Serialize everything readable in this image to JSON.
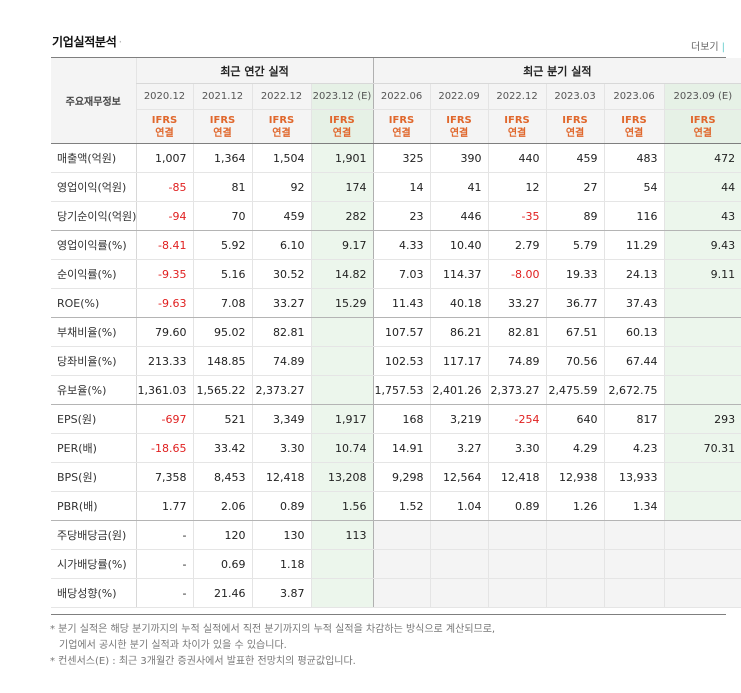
{
  "section_title": "기업실적분석",
  "more_link": "더보기",
  "header": {
    "row_header": "주요재무정보",
    "annual_group": "최근 연간 실적",
    "quarter_group": "최근 분기 실적",
    "annual_periods": [
      "2020.12",
      "2021.12",
      "2022.12",
      "2023.12 (E)"
    ],
    "quarter_periods": [
      "2022.06",
      "2022.09",
      "2022.12",
      "2023.03",
      "2023.06",
      "2023.09 (E)"
    ],
    "type_line1": "IFRS",
    "type_line2": "연결"
  },
  "rows": [
    {
      "label": "매출액(억원)",
      "annual": [
        "1,007",
        "1,364",
        "1,504",
        "1,901"
      ],
      "quarter": [
        "325",
        "390",
        "440",
        "459",
        "483",
        "472"
      ]
    },
    {
      "label": "영업이익(억원)",
      "annual": [
        "-85",
        "81",
        "92",
        "174"
      ],
      "quarter": [
        "14",
        "41",
        "12",
        "27",
        "54",
        "44"
      ]
    },
    {
      "label": "당기순이익(억원)",
      "annual": [
        "-94",
        "70",
        "459",
        "282"
      ],
      "quarter": [
        "23",
        "446",
        "-35",
        "89",
        "116",
        "43"
      ]
    },
    {
      "label": "영업이익률(%)",
      "annual": [
        "-8.41",
        "5.92",
        "6.10",
        "9.17"
      ],
      "quarter": [
        "4.33",
        "10.40",
        "2.79",
        "5.79",
        "11.29",
        "9.43"
      ]
    },
    {
      "label": "순이익률(%)",
      "annual": [
        "-9.35",
        "5.16",
        "30.52",
        "14.82"
      ],
      "quarter": [
        "7.03",
        "114.37",
        "-8.00",
        "19.33",
        "24.13",
        "9.11"
      ]
    },
    {
      "label": "ROE(%)",
      "annual": [
        "-9.63",
        "7.08",
        "33.27",
        "15.29"
      ],
      "quarter": [
        "11.43",
        "40.18",
        "33.27",
        "36.77",
        "37.43",
        ""
      ]
    },
    {
      "label": "부채비율(%)",
      "annual": [
        "79.60",
        "95.02",
        "82.81",
        ""
      ],
      "quarter": [
        "107.57",
        "86.21",
        "82.81",
        "67.51",
        "60.13",
        ""
      ]
    },
    {
      "label": "당좌비율(%)",
      "annual": [
        "213.33",
        "148.85",
        "74.89",
        ""
      ],
      "quarter": [
        "102.53",
        "117.17",
        "74.89",
        "70.56",
        "67.44",
        ""
      ]
    },
    {
      "label": "유보율(%)",
      "annual": [
        "1,361.03",
        "1,565.22",
        "2,373.27",
        ""
      ],
      "quarter": [
        "1,757.53",
        "2,401.26",
        "2,373.27",
        "2,475.59",
        "2,672.75",
        ""
      ]
    },
    {
      "label": "EPS(원)",
      "annual": [
        "-697",
        "521",
        "3,349",
        "1,917"
      ],
      "quarter": [
        "168",
        "3,219",
        "-254",
        "640",
        "817",
        "293"
      ]
    },
    {
      "label": "PER(배)",
      "annual": [
        "-18.65",
        "33.42",
        "3.30",
        "10.74"
      ],
      "quarter": [
        "14.91",
        "3.27",
        "3.30",
        "4.29",
        "4.23",
        "70.31"
      ]
    },
    {
      "label": "BPS(원)",
      "annual": [
        "7,358",
        "8,453",
        "12,418",
        "13,208"
      ],
      "quarter": [
        "9,298",
        "12,564",
        "12,418",
        "12,938",
        "13,933",
        ""
      ]
    },
    {
      "label": "PBR(배)",
      "annual": [
        "1.77",
        "2.06",
        "0.89",
        "1.56"
      ],
      "quarter": [
        "1.52",
        "1.04",
        "0.89",
        "1.26",
        "1.34",
        ""
      ]
    },
    {
      "label": "주당배당금(원)",
      "annual": [
        "-",
        "120",
        "130",
        "113"
      ],
      "quarter": null
    },
    {
      "label": "시가배당률(%)",
      "annual": [
        "-",
        "0.69",
        "1.18",
        ""
      ],
      "quarter": null
    },
    {
      "label": "배당성향(%)",
      "annual": [
        "-",
        "21.46",
        "3.87",
        ""
      ],
      "quarter": null
    }
  ],
  "notes": [
    "* 분기 실적은 해당 분기까지의 누적 실적에서 직전 분기까지의 누적 실적을 차감하는 방식으로 계산되므로,",
    "기업에서 공시한 분기 실적과 차이가 있을 수 있습니다.",
    "* 컨센서스(E) : 최근 3개월간 증권사에서 발표한 전망치의 평균값입니다."
  ]
}
